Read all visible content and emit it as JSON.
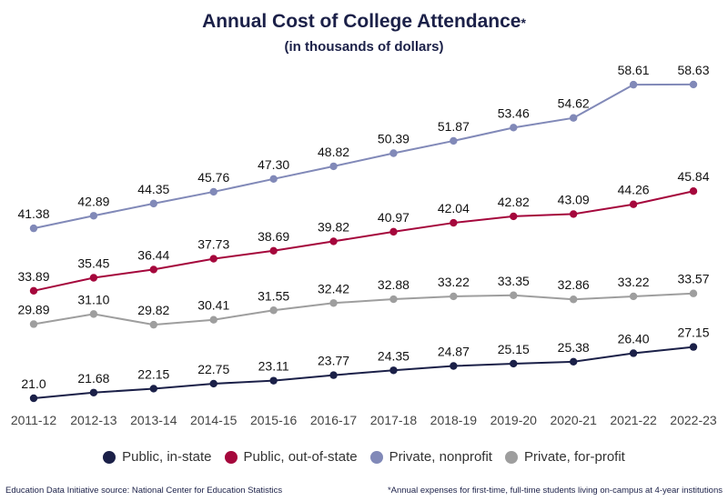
{
  "title": "Annual Cost of College Attendance",
  "title_mark": "*",
  "subtitle": "(in thousands of dollars)",
  "source": "Education Data Initiative source: National Center for Education Statistics",
  "footnote": "*Annual expenses for first-time, full-time students living on-campus at 4-year institutions",
  "chart_data": {
    "type": "line",
    "title": "Annual Cost of College Attendance*",
    "subtitle": "(in thousands of dollars)",
    "categories": [
      "2011-12",
      "2012-13",
      "2013-14",
      "2014-15",
      "2015-16",
      "2016-17",
      "2017-18",
      "2018-19",
      "2019-20",
      "2020-21",
      "2021-22",
      "2022-23"
    ],
    "grid": false,
    "legend_placement": "bottom",
    "series": [
      {
        "name": "Public, in-state",
        "color": "#1b2048",
        "values": [
          21.0,
          21.68,
          22.15,
          22.75,
          23.11,
          23.77,
          24.35,
          24.87,
          25.15,
          25.38,
          26.4,
          27.15
        ],
        "labels": [
          "21.0",
          "21.68",
          "22.15",
          "22.75",
          "23.11",
          "23.77",
          "24.35",
          "24.87",
          "25.15",
          "25.38",
          "26.40",
          "27.15"
        ]
      },
      {
        "name": "Public, out-of-state",
        "color": "#a5073c",
        "values": [
          33.89,
          35.45,
          36.44,
          37.73,
          38.69,
          39.82,
          40.97,
          42.04,
          42.82,
          43.09,
          44.26,
          45.84
        ],
        "labels": [
          "33.89",
          "35.45",
          "36.44",
          "37.73",
          "38.69",
          "39.82",
          "40.97",
          "42.04",
          "42.82",
          "43.09",
          "44.26",
          "45.84"
        ]
      },
      {
        "name": "Private, nonprofit",
        "color": "#8189b8",
        "values": [
          41.38,
          42.89,
          44.35,
          45.76,
          47.3,
          48.82,
          50.39,
          51.87,
          53.46,
          54.62,
          58.61,
          58.63
        ],
        "labels": [
          "41.38",
          "42.89",
          "44.35",
          "45.76",
          "47.30",
          "48.82",
          "50.39",
          "51.87",
          "53.46",
          "54.62",
          "58.61",
          "58.63"
        ]
      },
      {
        "name": "Private, for-profit",
        "color": "#9e9e9e",
        "values": [
          29.89,
          31.1,
          29.82,
          30.41,
          31.55,
          32.42,
          32.88,
          33.22,
          33.35,
          32.86,
          33.22,
          33.57
        ],
        "labels": [
          "29.89",
          "31.10",
          "29.82",
          "30.41",
          "31.55",
          "32.42",
          "32.88",
          "33.22",
          "33.35",
          "32.86",
          "33.22",
          "33.57"
        ]
      }
    ]
  }
}
